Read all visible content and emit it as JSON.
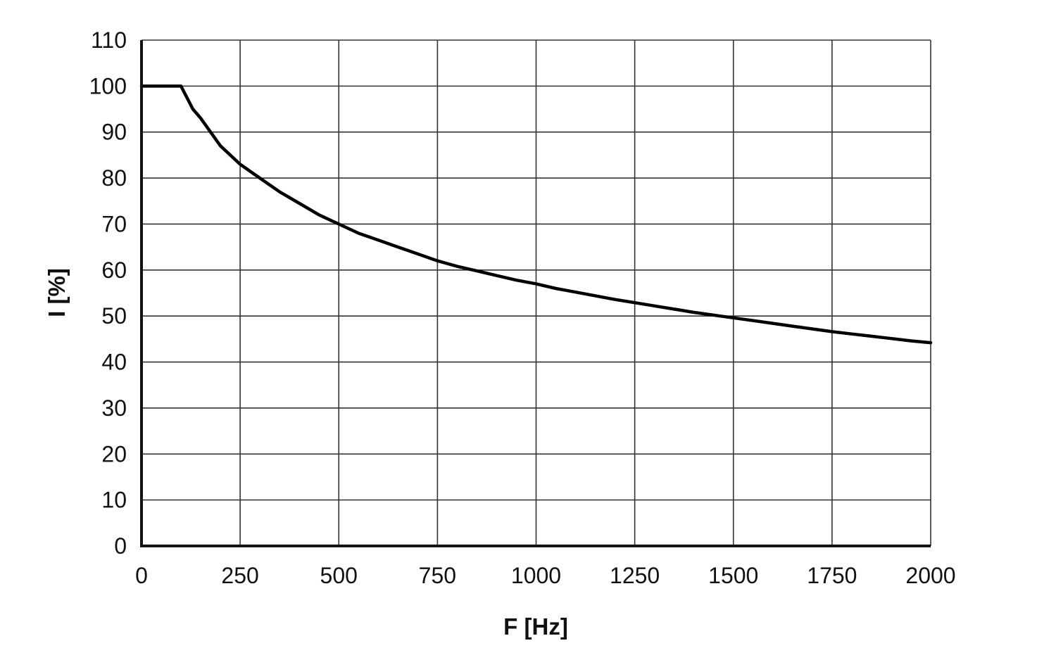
{
  "chart_data": {
    "type": "line",
    "title": "",
    "xlabel": "F [Hz]",
    "ylabel": "I [%]",
    "xlim": [
      0,
      2000
    ],
    "ylim": [
      0,
      110
    ],
    "grid": true,
    "legend": "none",
    "x_ticks": [
      "0",
      "250",
      "500",
      "750",
      "1000",
      "1250",
      "1500",
      "1750",
      "2000"
    ],
    "y_ticks": [
      "0",
      "10",
      "20",
      "30",
      "40",
      "50",
      "60",
      "70",
      "80",
      "90",
      "100",
      "110"
    ],
    "series": [
      {
        "color": "#000000",
        "x": [
          0,
          100,
          130,
          150,
          175,
          200,
          250,
          300,
          350,
          400,
          450,
          500,
          550,
          600,
          650,
          700,
          750,
          800,
          850,
          900,
          950,
          1000,
          1050,
          1100,
          1150,
          1200,
          1250,
          1300,
          1350,
          1400,
          1450,
          1500,
          1550,
          1600,
          1650,
          1700,
          1750,
          1800,
          1850,
          1900,
          1950,
          2000
        ],
        "y": [
          100,
          100,
          95,
          93,
          90,
          87,
          83,
          80,
          77,
          74.5,
          72,
          70,
          68,
          66.5,
          65,
          63.5,
          62,
          60.8,
          59.8,
          58.8,
          57.8,
          57,
          56,
          55.2,
          54.4,
          53.6,
          52.9,
          52.2,
          51.5,
          50.8,
          50.2,
          49.6,
          49,
          48.4,
          47.8,
          47.2,
          46.6,
          46.1,
          45.6,
          45.1,
          44.6,
          44.2
        ]
      }
    ]
  }
}
